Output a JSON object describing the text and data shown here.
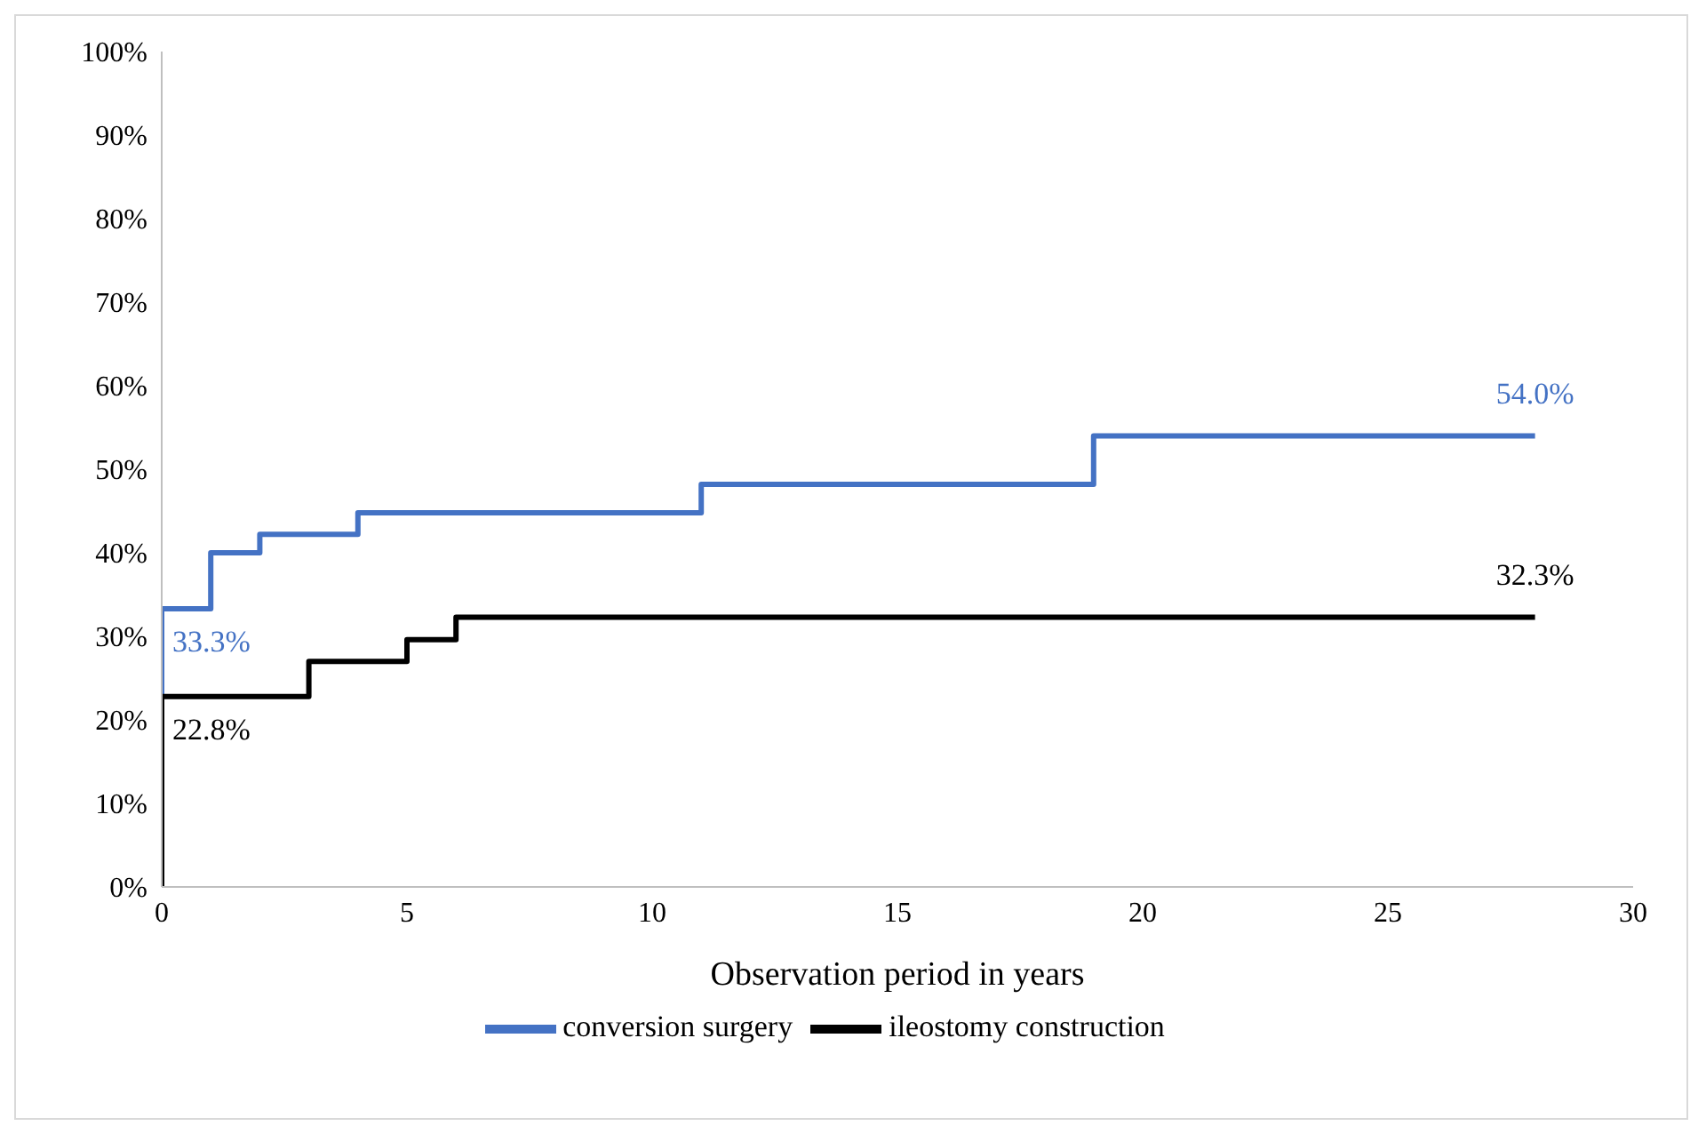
{
  "chart_data": {
    "type": "step",
    "xlabel": "Observation period in years",
    "series": [
      {
        "name": "conversion surgery",
        "color": "#4472c4",
        "x": [
          0,
          0,
          1,
          2,
          4,
          11,
          19,
          28
        ],
        "values": [
          22.8,
          33.3,
          40.0,
          42.2,
          44.8,
          48.2,
          54.0,
          54.0
        ],
        "value_labels": [
          null,
          "33.3%",
          null,
          null,
          null,
          null,
          null,
          "54.0%"
        ]
      },
      {
        "name": "ileostomy construction",
        "color": "#000000",
        "x": [
          0,
          0,
          3,
          5,
          6,
          28
        ],
        "values": [
          0,
          22.8,
          27.0,
          29.6,
          32.3,
          32.3
        ],
        "value_labels": [
          null,
          "22.8%",
          null,
          null,
          null,
          "32.3%"
        ]
      }
    ],
    "xlim": [
      0,
      30
    ],
    "xticks": [
      0,
      5,
      10,
      15,
      20,
      25,
      30
    ],
    "ylim": [
      0,
      100
    ],
    "yticks": [
      {
        "value": 0,
        "label": "0%"
      },
      {
        "value": 10,
        "label": "10%"
      },
      {
        "value": 20,
        "label": "20%"
      },
      {
        "value": 30,
        "label": "30%"
      },
      {
        "value": 40,
        "label": "40%"
      },
      {
        "value": 50,
        "label": "50%"
      },
      {
        "value": 60,
        "label": "60%"
      },
      {
        "value": 70,
        "label": "70%"
      },
      {
        "value": 80,
        "label": "80%"
      },
      {
        "value": 90,
        "label": "90%"
      },
      {
        "value": 100,
        "label": "100%"
      }
    ],
    "grid": false,
    "legend": "bottom",
    "marker": "none",
    "line_style": "solid"
  }
}
